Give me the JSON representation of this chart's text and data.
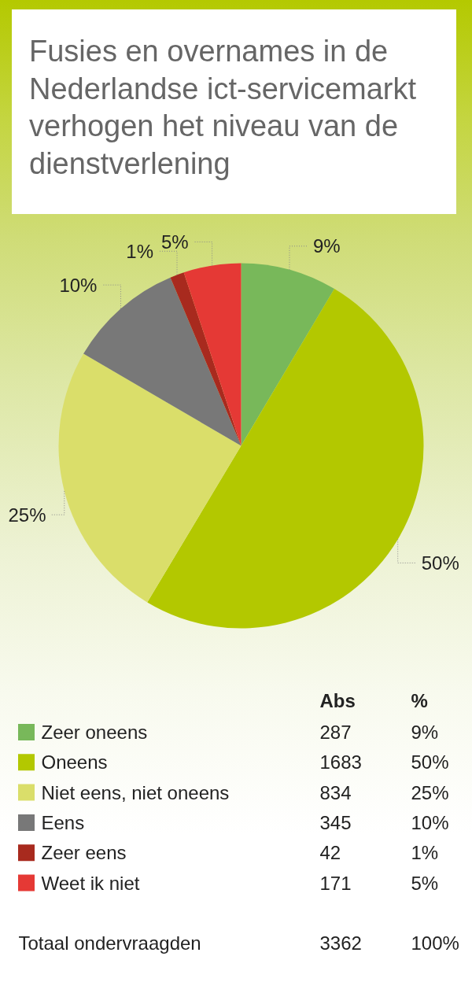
{
  "chart_data": {
    "type": "pie",
    "title": "Fusies en overnames in de Nederlandse ict-servicemarkt verhogen het niveau van de dienstverlening",
    "categories": [
      "Zeer oneens",
      "Oneens",
      "Niet eens, niet oneens",
      "Eens",
      "Zeer eens",
      "Weet ik niet"
    ],
    "values": [
      287,
      1683,
      834,
      345,
      42,
      171
    ],
    "colors": [
      "#78b85a",
      "#b3c800",
      "#dade6a",
      "#787878",
      "#a82a1e",
      "#e53935"
    ],
    "data_labels": true,
    "legend": "bottom",
    "annotations": [
      "Abs",
      "%",
      {
        "text": "9%",
        "x": "Zeer oneens"
      },
      {
        "text": "50%",
        "x": "Oneens"
      },
      {
        "text": "25%",
        "x": "Niet eens, niet oneens"
      },
      {
        "text": "10%",
        "x": "Eens"
      },
      {
        "text": "1%",
        "x": "Zeer eens"
      },
      {
        "text": "5%",
        "x": "Weet ik niet"
      },
      "Totaal ondervraagden",
      "3362",
      "100%"
    ]
  }
}
